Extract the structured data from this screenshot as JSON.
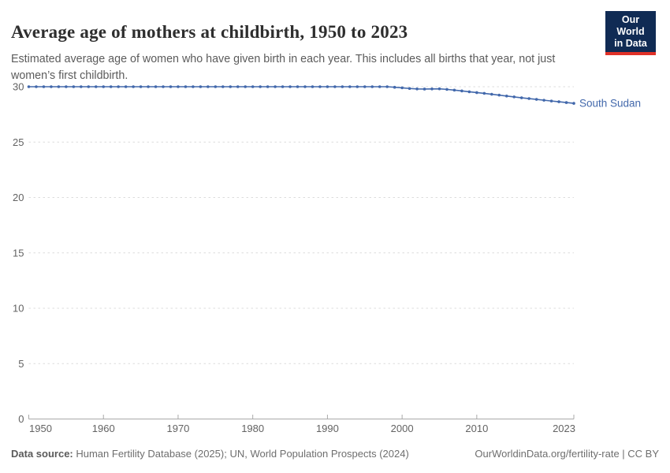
{
  "header": {
    "title": "Average age of mothers at childbirth, 1950 to 2023",
    "subtitle": "Estimated average age of women who have given birth in each year. This includes all births that year, not just women’s first childbirth."
  },
  "logo": {
    "line1": "Our World",
    "line2": "in Data",
    "bg_color": "#102b54",
    "bar_color": "#e03128"
  },
  "chart_data": {
    "type": "line",
    "title": "Average age of mothers at childbirth, 1950 to 2023",
    "xlabel": "",
    "ylabel": "",
    "xlim": [
      1950,
      2023
    ],
    "ylim": [
      0,
      30
    ],
    "x_ticks": [
      1950,
      1960,
      1970,
      1980,
      1990,
      2000,
      2010,
      2023
    ],
    "y_ticks": [
      0,
      5,
      10,
      15,
      20,
      25,
      30
    ],
    "grid": "dashed-horizontal",
    "legend_position": "end-of-line-label",
    "colors": {
      "grid": "#dcdcdc",
      "axis": "#a8a8a8",
      "tick_label": "#636363"
    },
    "series": [
      {
        "name": "South Sudan",
        "color": "#4268ab",
        "x": [
          1950,
          1951,
          1952,
          1953,
          1954,
          1955,
          1956,
          1957,
          1958,
          1959,
          1960,
          1961,
          1962,
          1963,
          1964,
          1965,
          1966,
          1967,
          1968,
          1969,
          1970,
          1971,
          1972,
          1973,
          1974,
          1975,
          1976,
          1977,
          1978,
          1979,
          1980,
          1981,
          1982,
          1983,
          1984,
          1985,
          1986,
          1987,
          1988,
          1989,
          1990,
          1991,
          1992,
          1993,
          1994,
          1995,
          1996,
          1997,
          1998,
          1999,
          2000,
          2001,
          2002,
          2003,
          2004,
          2005,
          2006,
          2007,
          2008,
          2009,
          2010,
          2011,
          2012,
          2013,
          2014,
          2015,
          2016,
          2017,
          2018,
          2019,
          2020,
          2021,
          2022,
          2023
        ],
        "values": [
          30,
          30,
          30,
          30,
          30,
          30,
          30,
          30,
          30,
          30,
          30,
          30,
          30,
          30,
          30,
          30,
          30,
          30,
          30,
          30,
          30,
          30,
          30,
          30,
          30,
          30,
          30,
          30,
          30,
          30,
          30,
          30,
          30,
          30,
          30,
          30,
          30,
          30,
          30,
          30,
          30,
          30,
          30,
          30,
          30,
          30,
          30,
          30,
          30,
          29.95,
          29.9,
          29.84,
          29.8,
          29.79,
          29.8,
          29.81,
          29.76,
          29.69,
          29.62,
          29.54,
          29.47,
          29.4,
          29.32,
          29.24,
          29.16,
          29.08,
          29.0,
          28.93,
          28.86,
          28.78,
          28.71,
          28.64,
          28.57,
          28.5
        ]
      }
    ]
  },
  "footer": {
    "source_label": "Data source:",
    "source_text": " Human Fertility Database (2025); UN, World Population Prospects (2024)",
    "credit": "OurWorldinData.org/fertility-rate | CC BY"
  }
}
